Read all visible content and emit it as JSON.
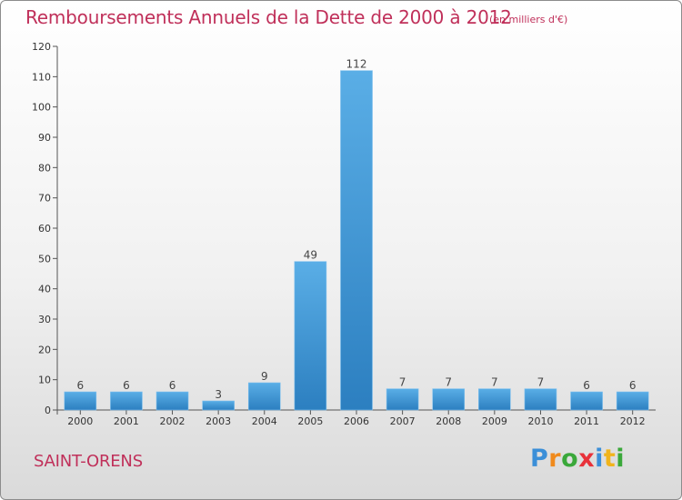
{
  "header": {
    "title": "Remboursements Annuels de la Dette de 2000 à 2012",
    "subtitle": "(en milliers d'€)"
  },
  "footer": {
    "place": "SAINT-ORENS",
    "logo_text": "Proxiti"
  },
  "colors": {
    "title": "#c0305a",
    "bar_top": "#5aaee6",
    "bar_bottom": "#2c7fc0"
  },
  "chart_data": {
    "type": "bar",
    "title": "Remboursements Annuels de la Dette de 2000 à 2012",
    "subtitle": "(en milliers d'€)",
    "categories": [
      "2000",
      "2001",
      "2002",
      "2003",
      "2004",
      "2005",
      "2006",
      "2007",
      "2008",
      "2009",
      "2010",
      "2011",
      "2012"
    ],
    "values": [
      6,
      6,
      6,
      3,
      9,
      49,
      112,
      7,
      7,
      7,
      7,
      6,
      6
    ],
    "ylim": [
      0,
      120
    ],
    "yticks": [
      0,
      10,
      20,
      30,
      40,
      50,
      60,
      70,
      80,
      90,
      100,
      110,
      120
    ],
    "grid": false,
    "data_labels": true
  }
}
